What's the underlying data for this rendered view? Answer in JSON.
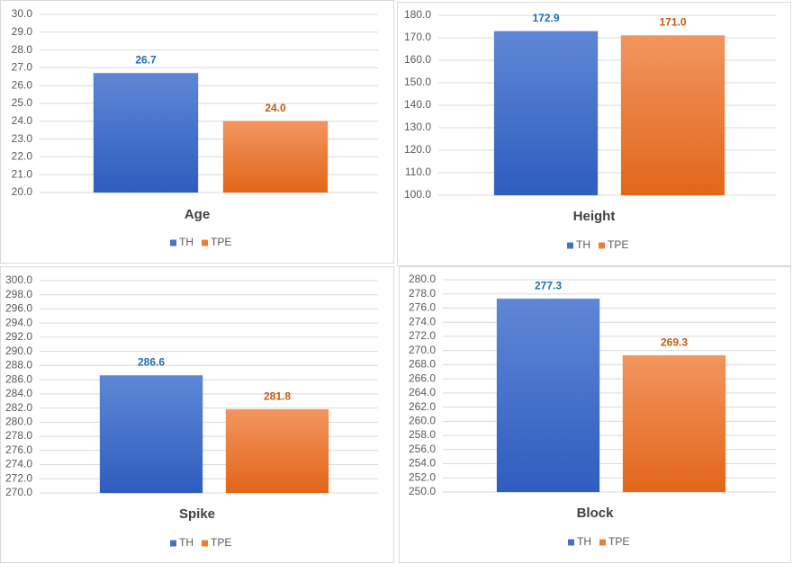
{
  "chart_data": [
    {
      "type": "bar",
      "title": "Age",
      "series": [
        {
          "name": "TH",
          "color": "#4472c4",
          "values": [
            26.7
          ],
          "value_labels": [
            "26.7"
          ]
        },
        {
          "name": "TPE",
          "color": "#ed7d31",
          "values": [
            24.0
          ],
          "value_labels": [
            "24.0"
          ]
        }
      ],
      "ylim": [
        20,
        30
      ],
      "grid": true,
      "yticks": [
        {
          "value": 20,
          "label": "20.0"
        },
        {
          "value": 21,
          "label": "21.0"
        },
        {
          "value": 22,
          "label": "22.0"
        },
        {
          "value": 23,
          "label": "23.0"
        },
        {
          "value": 24,
          "label": "24.0"
        },
        {
          "value": 25,
          "label": "25.0"
        },
        {
          "value": 26,
          "label": "26.0"
        },
        {
          "value": 27,
          "label": "27.0"
        },
        {
          "value": 28,
          "label": "28.0"
        },
        {
          "value": 29,
          "label": "29.0"
        },
        {
          "value": 30,
          "label": "30.0"
        }
      ]
    },
    {
      "type": "bar",
      "title": "Height",
      "series": [
        {
          "name": "TH",
          "color": "#4472c4",
          "values": [
            172.9
          ],
          "value_labels": [
            "172.9"
          ]
        },
        {
          "name": "TPE",
          "color": "#ed7d31",
          "values": [
            171.0
          ],
          "value_labels": [
            "171.0"
          ]
        }
      ],
      "ylim": [
        100,
        180
      ],
      "grid": true,
      "yticks": [
        {
          "value": 100,
          "label": "100.0"
        },
        {
          "value": 110,
          "label": "110.0"
        },
        {
          "value": 120,
          "label": "120.0"
        },
        {
          "value": 130,
          "label": "130.0"
        },
        {
          "value": 140,
          "label": "140.0"
        },
        {
          "value": 150,
          "label": "150.0"
        },
        {
          "value": 160,
          "label": "160.0"
        },
        {
          "value": 170,
          "label": "170.0"
        },
        {
          "value": 180,
          "label": "180.0"
        }
      ]
    },
    {
      "type": "bar",
      "title": "Spike",
      "series": [
        {
          "name": "TH",
          "color": "#4472c4",
          "values": [
            286.6
          ],
          "value_labels": [
            "286.6"
          ]
        },
        {
          "name": "TPE",
          "color": "#ed7d31",
          "values": [
            281.8
          ],
          "value_labels": [
            "281.8"
          ]
        }
      ],
      "ylim": [
        270,
        300
      ],
      "grid": true,
      "yticks": [
        {
          "value": 270,
          "label": "270.0"
        },
        {
          "value": 272,
          "label": "272.0"
        },
        {
          "value": 274,
          "label": "274.0"
        },
        {
          "value": 276,
          "label": "276.0"
        },
        {
          "value": 278,
          "label": "278.0"
        },
        {
          "value": 280,
          "label": "280.0"
        },
        {
          "value": 282,
          "label": "282.0"
        },
        {
          "value": 284,
          "label": "284.0"
        },
        {
          "value": 286,
          "label": "286.0"
        },
        {
          "value": 288,
          "label": "288.0"
        },
        {
          "value": 290,
          "label": "290.0"
        },
        {
          "value": 292,
          "label": "292.0"
        },
        {
          "value": 294,
          "label": "294.0"
        },
        {
          "value": 296,
          "label": "296.0"
        },
        {
          "value": 298,
          "label": "298.0"
        },
        {
          "value": 300,
          "label": "300.0"
        }
      ]
    },
    {
      "type": "bar",
      "title": "Block",
      "series": [
        {
          "name": "TH",
          "color": "#4472c4",
          "values": [
            277.3
          ],
          "value_labels": [
            "277.3"
          ]
        },
        {
          "name": "TPE",
          "color": "#ed7d31",
          "values": [
            269.3
          ],
          "value_labels": [
            "269.3"
          ]
        }
      ],
      "ylim": [
        250,
        280
      ],
      "grid": true,
      "yticks": [
        {
          "value": 250,
          "label": "250.0"
        },
        {
          "value": 252,
          "label": "252.0"
        },
        {
          "value": 254,
          "label": "254.0"
        },
        {
          "value": 256,
          "label": "256.0"
        },
        {
          "value": 258,
          "label": "258.0"
        },
        {
          "value": 260,
          "label": "260.0"
        },
        {
          "value": 262,
          "label": "262.0"
        },
        {
          "value": 264,
          "label": "264.0"
        },
        {
          "value": 266,
          "label": "266.0"
        },
        {
          "value": 268,
          "label": "268.0"
        },
        {
          "value": 270,
          "label": "270.0"
        },
        {
          "value": 272,
          "label": "272.0"
        },
        {
          "value": 274,
          "label": "274.0"
        },
        {
          "value": 276,
          "label": "276.0"
        },
        {
          "value": 278,
          "label": "278.0"
        },
        {
          "value": 280,
          "label": "280.0"
        }
      ]
    }
  ]
}
